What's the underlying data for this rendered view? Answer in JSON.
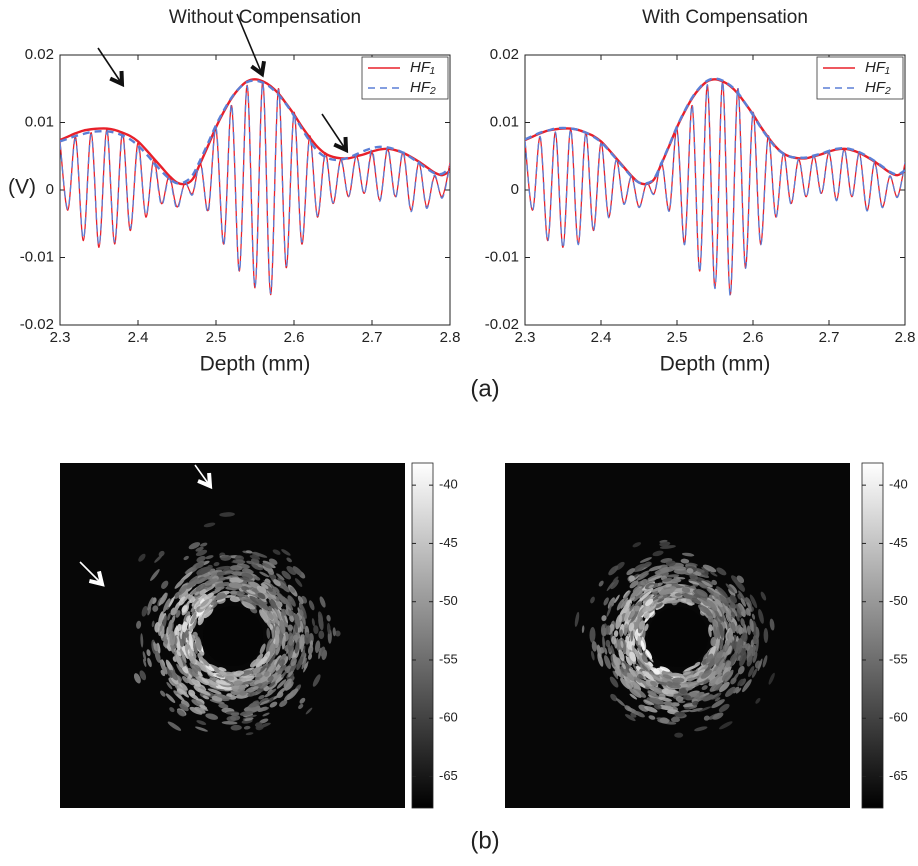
{
  "panel_labels": [
    "(a)",
    "(b)"
  ],
  "chart_data": [
    {
      "type": "line",
      "title": "Without Compensation",
      "xlabel": "Depth (mm)",
      "ylabel": "(V)",
      "xlim": [
        2.3,
        2.8
      ],
      "ylim": [
        -0.02,
        0.02
      ],
      "xticks": [
        2.3,
        2.4,
        2.5,
        2.6,
        2.7,
        2.8
      ],
      "yticks": [
        -0.02,
        -0.01,
        0,
        0.01,
        0.02
      ],
      "legend": "upper right",
      "x": [
        2.3,
        2.31,
        2.32,
        2.33,
        2.34,
        2.35,
        2.36,
        2.37,
        2.38,
        2.39,
        2.4,
        2.41,
        2.42,
        2.43,
        2.44,
        2.45,
        2.46,
        2.47,
        2.48,
        2.49,
        2.5,
        2.51,
        2.52,
        2.53,
        2.54,
        2.55,
        2.56,
        2.57,
        2.58,
        2.59,
        2.6,
        2.61,
        2.62,
        2.63,
        2.64,
        2.65,
        2.66,
        2.67,
        2.68,
        2.69,
        2.7,
        2.71,
        2.72,
        2.73,
        2.74,
        2.75,
        2.76,
        2.77,
        2.78,
        2.79,
        2.8
      ],
      "series": [
        {
          "name": "HF₁",
          "color": "#e8202a",
          "dash": false,
          "values": [
            0.0072,
            -0.003,
            0.0078,
            -0.0075,
            0.0085,
            -0.0085,
            0.009,
            -0.008,
            0.0085,
            -0.006,
            0.007,
            -0.004,
            0.0045,
            -0.002,
            0.002,
            -0.0025,
            0.001,
            -0.0005,
            0.004,
            -0.003,
            0.009,
            -0.008,
            0.0125,
            -0.012,
            0.0155,
            -0.0145,
            0.016,
            -0.0155,
            0.015,
            -0.0115,
            0.0115,
            -0.008,
            0.008,
            -0.004,
            0.0055,
            -0.002,
            0.0045,
            -0.001,
            0.005,
            -0.0005,
            0.0055,
            -0.0015,
            0.006,
            -0.001,
            0.0055,
            -0.003,
            0.004,
            -0.0025,
            0.002,
            -0.001,
            0.004
          ],
          "envelope": [
            0.0074,
            0.0079,
            0.0084,
            0.0088,
            0.009,
            0.0091,
            0.0091,
            0.0089,
            0.0085,
            0.008,
            0.0072,
            0.006,
            0.0047,
            0.0034,
            0.0021,
            0.0011,
            0.0009,
            0.0016,
            0.004,
            0.0066,
            0.0093,
            0.0116,
            0.0136,
            0.0151,
            0.0161,
            0.0164,
            0.0161,
            0.0154,
            0.0143,
            0.0128,
            0.0112,
            0.0094,
            0.0078,
            0.0064,
            0.0054,
            0.0049,
            0.0047,
            0.0047,
            0.005,
            0.0053,
            0.0057,
            0.006,
            0.0061,
            0.0059,
            0.0055,
            0.0049,
            0.0042,
            0.0034,
            0.0026,
            0.0022,
            0.0028
          ]
        },
        {
          "name": "HF₂",
          "color": "#5b7fd6",
          "dash": true,
          "values": [
            0.007,
            -0.0028,
            0.0075,
            -0.0072,
            0.0082,
            -0.0082,
            0.0086,
            -0.0077,
            0.0081,
            -0.0057,
            0.0064,
            -0.0037,
            0.004,
            -0.0022,
            0.0017,
            -0.0028,
            0.0011,
            -0.0007,
            0.0043,
            -0.0033,
            0.0093,
            -0.0082,
            0.0127,
            -0.0121,
            0.0154,
            -0.0144,
            0.0158,
            -0.0153,
            0.0148,
            -0.0112,
            0.0112,
            -0.0077,
            0.0075,
            -0.0038,
            0.005,
            -0.0019,
            0.0043,
            -0.0009,
            0.0051,
            -0.0006,
            0.006,
            -0.0017,
            0.0063,
            -0.0012,
            0.0058,
            -0.0032,
            0.0042,
            -0.0027,
            0.0022,
            -0.0012,
            0.0038
          ],
          "envelope": [
            0.0072,
            0.0076,
            0.008,
            0.0083,
            0.0086,
            0.0087,
            0.0087,
            0.0085,
            0.0081,
            0.0075,
            0.0066,
            0.0054,
            0.0041,
            0.0028,
            0.0017,
            0.001,
            0.0012,
            0.0022,
            0.0045,
            0.007,
            0.0096,
            0.0118,
            0.0137,
            0.0151,
            0.016,
            0.0162,
            0.0159,
            0.0152,
            0.0141,
            0.0127,
            0.011,
            0.0091,
            0.0073,
            0.0058,
            0.0049,
            0.0045,
            0.0045,
            0.0048,
            0.0053,
            0.0058,
            0.0062,
            0.0064,
            0.0063,
            0.006,
            0.0055,
            0.0048,
            0.004,
            0.0032,
            0.0025,
            0.0024,
            0.0033
          ]
        }
      ]
    },
    {
      "type": "line",
      "title": "With Compensation",
      "xlabel": "Depth (mm)",
      "xlim": [
        2.3,
        2.8
      ],
      "ylim": [
        -0.02,
        0.02
      ],
      "xticks": [
        2.3,
        2.4,
        2.5,
        2.6,
        2.7,
        2.8
      ],
      "yticks": [
        -0.02,
        -0.01,
        0,
        0.01,
        0.02
      ],
      "legend": "upper right",
      "x": [
        2.3,
        2.31,
        2.32,
        2.33,
        2.34,
        2.35,
        2.36,
        2.37,
        2.38,
        2.39,
        2.4,
        2.41,
        2.42,
        2.43,
        2.44,
        2.45,
        2.46,
        2.47,
        2.48,
        2.49,
        2.5,
        2.51,
        2.52,
        2.53,
        2.54,
        2.55,
        2.56,
        2.57,
        2.58,
        2.59,
        2.6,
        2.61,
        2.62,
        2.63,
        2.64,
        2.65,
        2.66,
        2.67,
        2.68,
        2.69,
        2.7,
        2.71,
        2.72,
        2.73,
        2.74,
        2.75,
        2.76,
        2.77,
        2.78,
        2.79,
        2.8
      ],
      "series": [
        {
          "name": "HF₁",
          "color": "#e8202a",
          "dash": false,
          "values": [
            0.0072,
            -0.003,
            0.0078,
            -0.0075,
            0.0085,
            -0.0085,
            0.009,
            -0.008,
            0.0085,
            -0.006,
            0.007,
            -0.004,
            0.0045,
            -0.002,
            0.002,
            -0.0025,
            0.001,
            -0.0005,
            0.004,
            -0.003,
            0.009,
            -0.008,
            0.0125,
            -0.012,
            0.0155,
            -0.0145,
            0.016,
            -0.0155,
            0.015,
            -0.0115,
            0.0115,
            -0.008,
            0.008,
            -0.004,
            0.0055,
            -0.002,
            0.0045,
            -0.001,
            0.005,
            -0.0005,
            0.0055,
            -0.0015,
            0.006,
            -0.001,
            0.0055,
            -0.003,
            0.004,
            -0.0025,
            0.002,
            -0.001,
            0.004
          ],
          "envelope": [
            0.0074,
            0.0079,
            0.0084,
            0.0088,
            0.009,
            0.0091,
            0.0091,
            0.0089,
            0.0085,
            0.008,
            0.0072,
            0.006,
            0.0047,
            0.0034,
            0.0021,
            0.0011,
            0.0009,
            0.0016,
            0.004,
            0.0066,
            0.0093,
            0.0116,
            0.0136,
            0.0151,
            0.0161,
            0.0164,
            0.0161,
            0.0154,
            0.0143,
            0.0128,
            0.0112,
            0.0094,
            0.0078,
            0.0064,
            0.0054,
            0.0049,
            0.0047,
            0.0047,
            0.005,
            0.0053,
            0.0057,
            0.006,
            0.0061,
            0.0059,
            0.0055,
            0.0049,
            0.0042,
            0.0034,
            0.0026,
            0.0022,
            0.0028
          ]
        },
        {
          "name": "HF₂",
          "color": "#5b7fd6",
          "dash": true,
          "values": [
            0.0073,
            -0.0031,
            0.0079,
            -0.0076,
            0.0086,
            -0.0086,
            0.009,
            -0.0081,
            0.0084,
            -0.0061,
            0.0069,
            -0.0041,
            0.0044,
            -0.0021,
            0.0019,
            -0.0026,
            0.001,
            -0.0006,
            0.0041,
            -0.0031,
            0.0091,
            -0.0081,
            0.0126,
            -0.0121,
            0.0156,
            -0.0146,
            0.0161,
            -0.0157,
            0.0151,
            -0.0116,
            0.0114,
            -0.0081,
            0.0079,
            -0.0041,
            0.0054,
            -0.0021,
            0.0046,
            -0.0011,
            0.0051,
            -0.0006,
            0.0056,
            -0.0016,
            0.0061,
            -0.0011,
            0.0054,
            -0.0031,
            0.0041,
            -0.0026,
            0.0021,
            -0.0011,
            0.0041
          ],
          "envelope": [
            0.0075,
            0.008,
            0.0085,
            0.0088,
            0.0091,
            0.0092,
            0.0091,
            0.0089,
            0.0085,
            0.0079,
            0.0071,
            0.0059,
            0.0046,
            0.0033,
            0.002,
            0.0011,
            0.001,
            0.0017,
            0.0041,
            0.0067,
            0.0094,
            0.0117,
            0.0137,
            0.0152,
            0.0162,
            0.0165,
            0.0162,
            0.0155,
            0.0144,
            0.0128,
            0.0111,
            0.0093,
            0.0077,
            0.0063,
            0.0054,
            0.0049,
            0.0048,
            0.0048,
            0.0051,
            0.0054,
            0.0058,
            0.0061,
            0.0062,
            0.006,
            0.0056,
            0.005,
            0.0043,
            0.0035,
            0.0027,
            0.0023,
            0.0029
          ]
        }
      ]
    },
    {
      "type": "image",
      "clim": [
        -67.7,
        -38.1
      ],
      "cbticks": [
        -40,
        -45,
        -50,
        -55,
        -60,
        -65
      ]
    },
    {
      "type": "image",
      "clim": [
        -67.7,
        -38.1
      ],
      "cbticks": [
        -40,
        -45,
        -50,
        -55,
        -60,
        -65
      ]
    }
  ]
}
